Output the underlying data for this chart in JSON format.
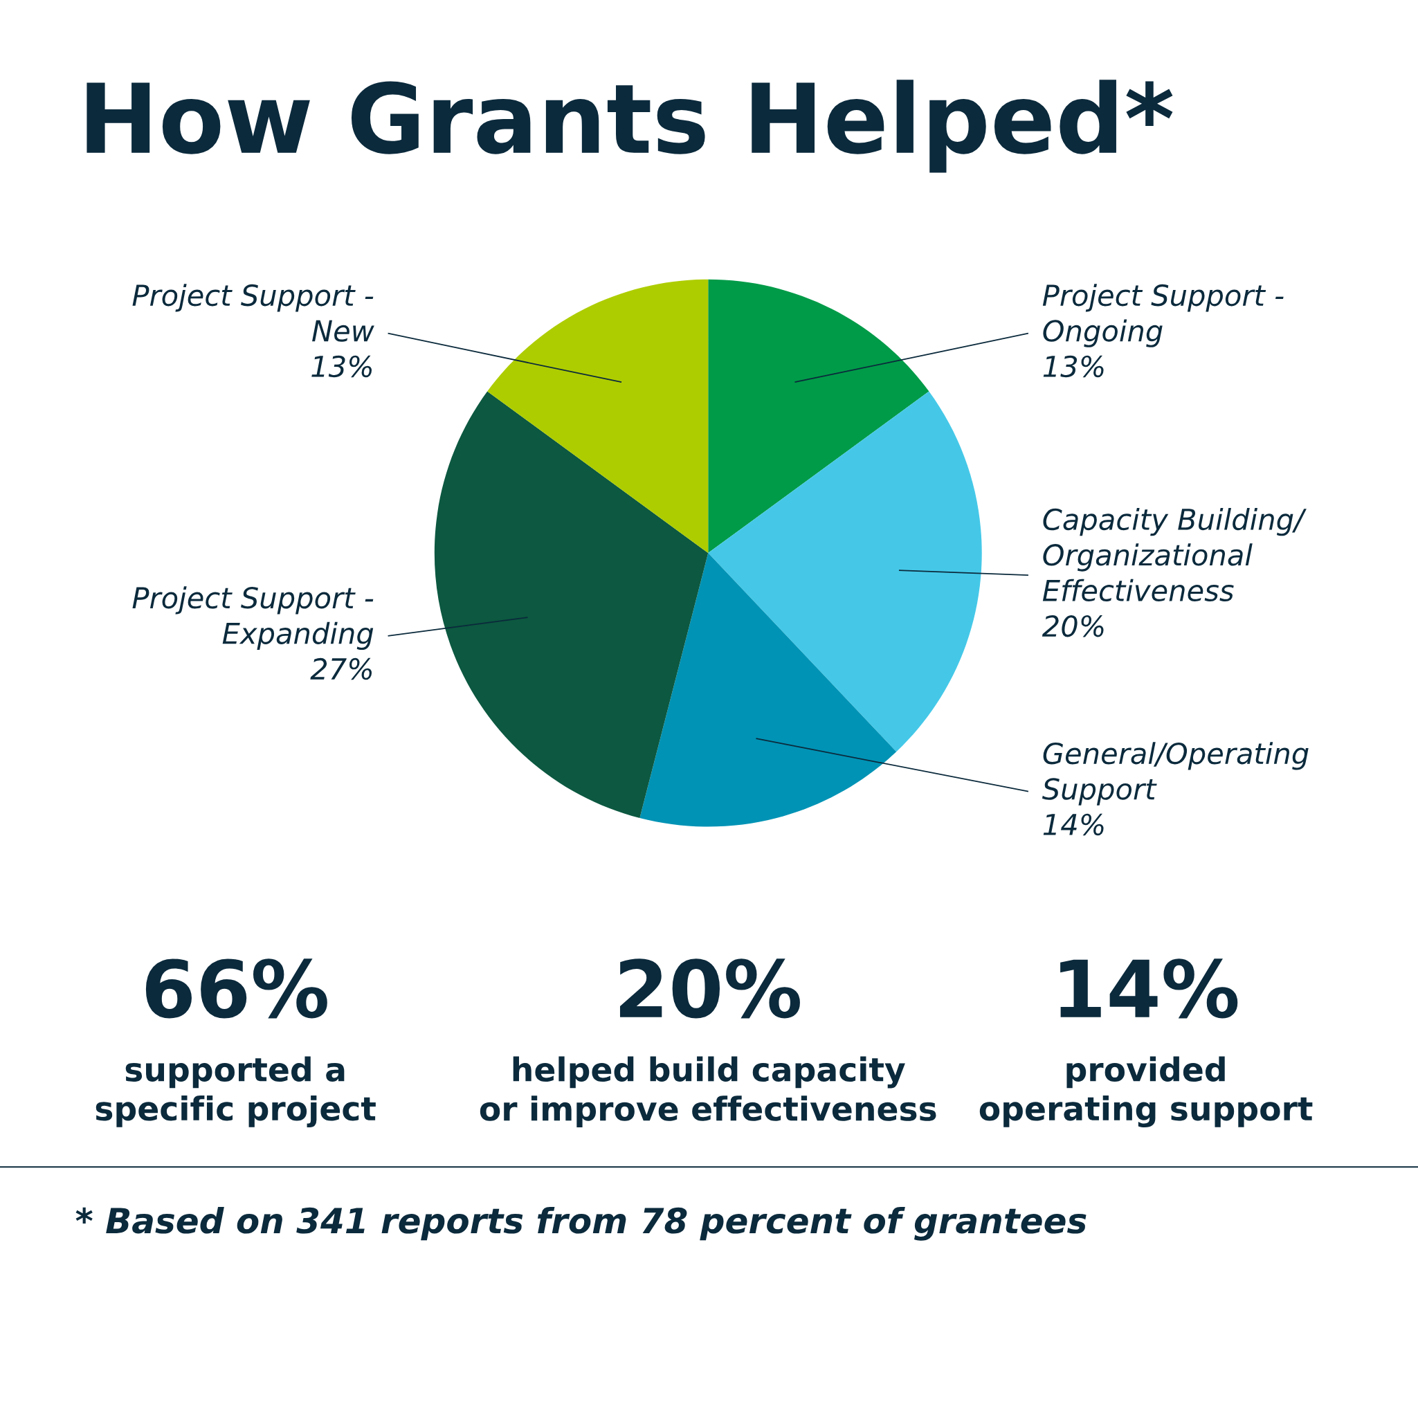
{
  "chart_data": {
    "type": "pie",
    "title": "How Grants Helped*",
    "categories": [
      "Project Support -\nOngoing",
      "Capacity Building/\nOrganizational\nEffectiveness",
      "General/Operating\nSupport",
      "Project Support -\nExpanding",
      "Project Support -\nNew"
    ],
    "values": [
      13,
      20,
      14,
      27,
      13
    ],
    "colors": [
      "#009b48",
      "#45c8e8",
      "#0093b5",
      "#0c5840",
      "#aecd00"
    ],
    "value_labels": [
      "13%",
      "20%",
      "14%",
      "27%",
      "13%"
    ],
    "annotations": [
      "66%",
      "supported a\nspecific project",
      "20%",
      "helped build capacity\nor improve effectiveness",
      "14%",
      "provided\noperating support",
      "* Based on 341 reports from 78 percent of grantees"
    ]
  }
}
